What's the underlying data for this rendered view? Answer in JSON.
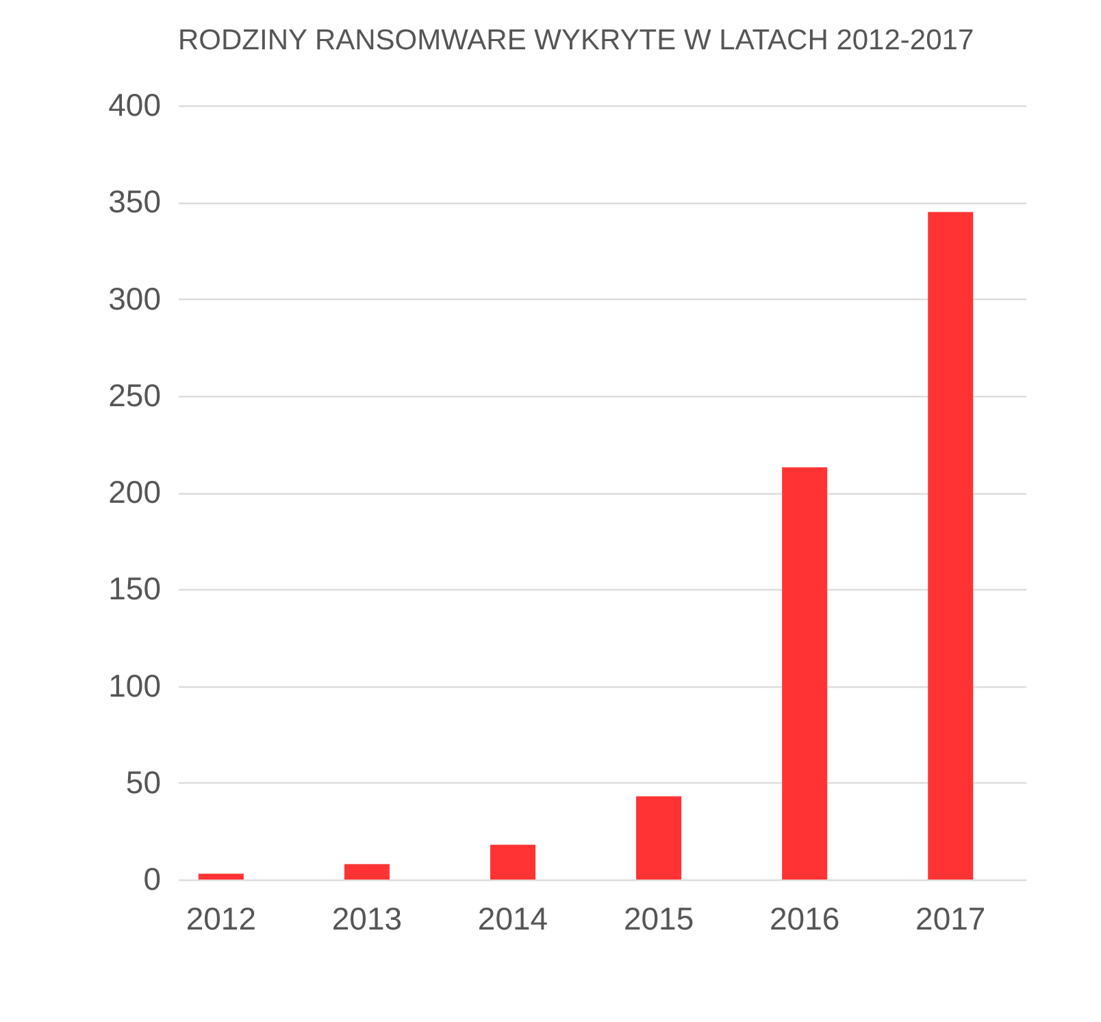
{
  "chart_data": {
    "type": "bar",
    "title": "RODZINY RANSOMWARE WYKRYTE W LATACH 2012-2017",
    "categories": [
      "2012",
      "2013",
      "2014",
      "2015",
      "2016",
      "2017"
    ],
    "values": [
      3,
      8,
      18,
      43,
      213,
      345
    ],
    "color": "#ff3333",
    "ylim": [
      0,
      400
    ],
    "yticks": [
      0,
      50,
      100,
      150,
      200,
      250,
      300,
      350,
      400
    ],
    "grid": "y"
  }
}
